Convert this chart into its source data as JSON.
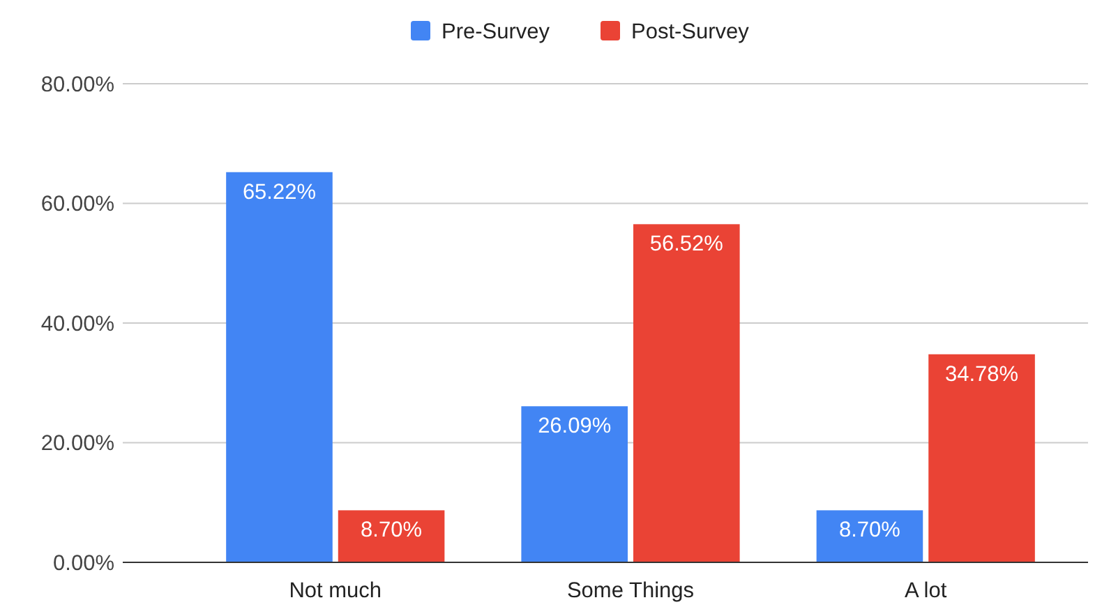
{
  "chart_data": {
    "type": "bar",
    "categories": [
      "Not much",
      "Some Things",
      "A lot"
    ],
    "series": [
      {
        "name": "Pre-Survey",
        "color": "#4285f4",
        "values": [
          65.22,
          26.09,
          8.7
        ],
        "value_labels": [
          "65.22%",
          "26.09%",
          "8.70%"
        ]
      },
      {
        "name": "Post-Survey",
        "color": "#ea4335",
        "values": [
          8.7,
          56.52,
          34.78
        ],
        "value_labels": [
          "8.70%",
          "56.52%",
          "34.78%"
        ]
      }
    ],
    "ylim": [
      0,
      80
    ],
    "yticks": [
      {
        "value": 0,
        "label": "0.00%"
      },
      {
        "value": 20,
        "label": "20.00%"
      },
      {
        "value": 40,
        "label": "40.00%"
      },
      {
        "value": 60,
        "label": "60.00%"
      },
      {
        "value": 80,
        "label": "80.00%"
      }
    ],
    "grid": "y",
    "legend": "top"
  }
}
